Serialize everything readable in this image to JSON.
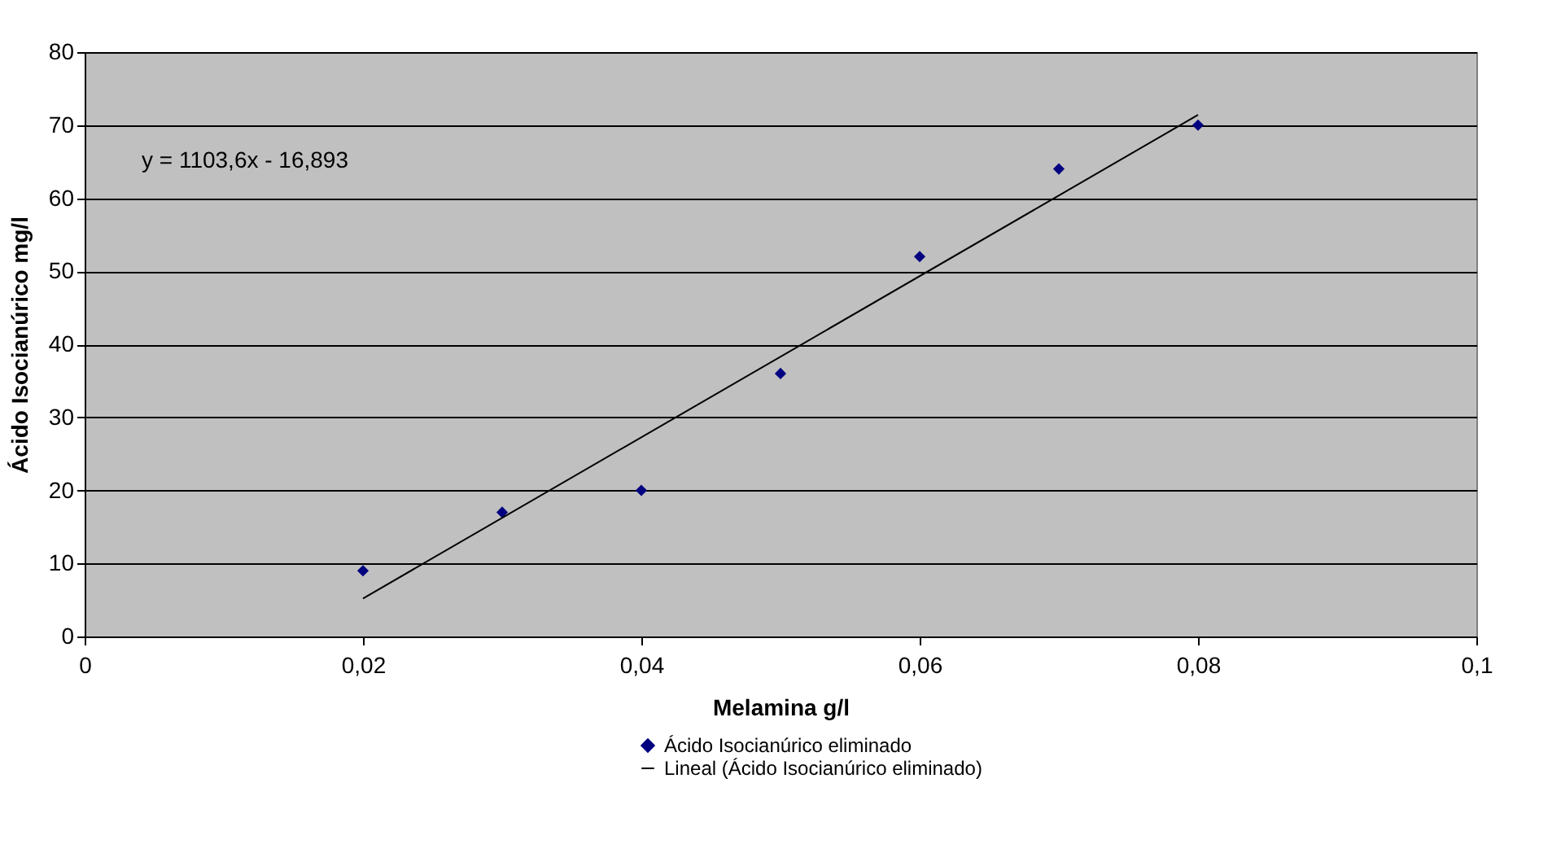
{
  "chart_data": {
    "type": "scatter",
    "xlabel": "Melamina g/l",
    "ylabel": "Ácido Isocianúrico mg/l",
    "annotations": [
      "y = 1103,6x - 16,893"
    ],
    "series": [
      {
        "name": "Ácido Isocianúrico eliminado",
        "color": "#000080",
        "marker": "diamond",
        "x": [
          0.02,
          0.03,
          0.04,
          0.05,
          0.06,
          0.07,
          0.08
        ],
        "values": [
          9,
          17,
          20,
          36,
          52,
          64,
          70
        ]
      },
      {
        "name": "Lineal (Ácido Isocianúrico eliminado)",
        "type": "line",
        "marker": "none",
        "color": "#000000",
        "x": [
          0.02,
          0.08
        ],
        "values": [
          5.2,
          71.4
        ]
      }
    ],
    "xlim": [
      0,
      0.1
    ],
    "xticks": [
      0,
      {
        "value": 0.02,
        "label": "0,02"
      },
      {
        "value": 0.04,
        "label": "0,04"
      },
      {
        "value": 0.06,
        "label": "0,06"
      },
      {
        "value": 0.08,
        "label": "0,08"
      },
      {
        "value": 0.1,
        "label": "0,1"
      }
    ],
    "ylim": [
      0,
      80
    ],
    "yticks": [
      0,
      10,
      20,
      30,
      40,
      50,
      60,
      70,
      80
    ],
    "grid": "y",
    "legend": "bottom",
    "line_style": "solid"
  }
}
